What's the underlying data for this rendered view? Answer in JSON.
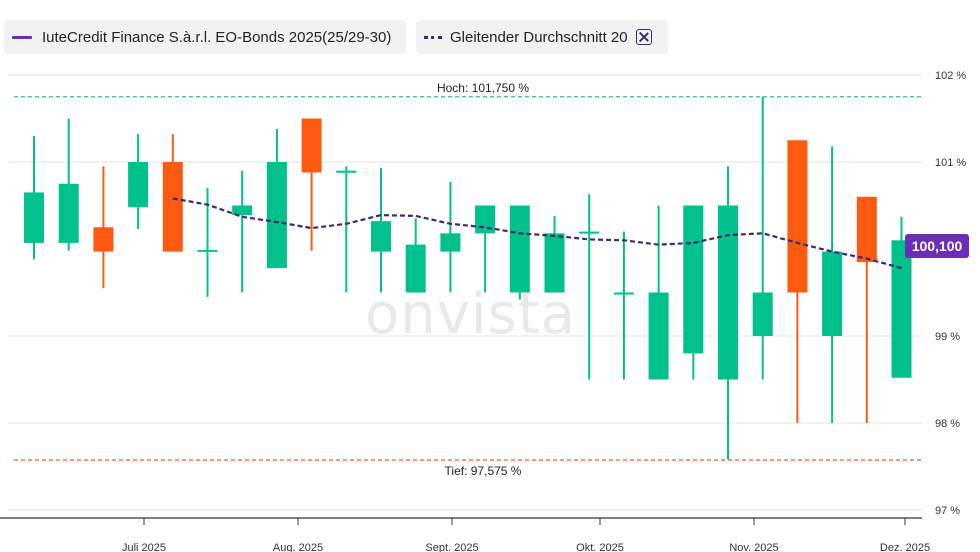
{
  "legend": {
    "bond_label": "IuteCredit Finance S.à.r.l. EO-Bonds 2025(25/29-30)",
    "ma_label": "Gleitender Durchschnitt 20",
    "close_icon": "close-icon"
  },
  "watermark": "onvista",
  "last_value_label": "100,100",
  "colors": {
    "up": "#00c08b",
    "down": "#ff5a12",
    "ma": "#3a2a6e",
    "badge": "#6b2fb7",
    "high_line": "#27c49a",
    "low_line": "#ff5a12",
    "grid": "#e6e6e6"
  },
  "chart_data": {
    "type": "candlestick",
    "ylim": [
      97.0,
      102.0
    ],
    "y_ticks": [
      {
        "value": 102,
        "label": "102 %"
      },
      {
        "value": 101,
        "label": "101 %"
      },
      {
        "value": 99,
        "label": "99 %"
      },
      {
        "value": 98,
        "label": "98 %"
      },
      {
        "value": 97,
        "label": "97 %"
      }
    ],
    "x_ticks": [
      "Juli 2025",
      "Aug. 2025",
      "Sept. 2025",
      "Okt. 2025",
      "Nov. 2025",
      "Dez. 2025"
    ],
    "high": {
      "value": 101.75,
      "label": "Hoch: 101,750 %"
    },
    "low": {
      "value": 97.575,
      "label": "Tief: 97,575 %"
    },
    "last": {
      "value": 100.1,
      "label": "100,100"
    },
    "candles": [
      {
        "open": 100.07,
        "close": 100.65,
        "high": 101.3,
        "low": 99.88
      },
      {
        "open": 100.07,
        "close": 100.75,
        "high": 101.5,
        "low": 99.98
      },
      {
        "open": 100.25,
        "close": 99.97,
        "high": 100.95,
        "low": 99.55
      },
      {
        "open": 100.48,
        "close": 101.0,
        "high": 101.32,
        "low": 100.23
      },
      {
        "open": 101.0,
        "close": 99.97,
        "high": 101.32,
        "low": 99.97
      },
      {
        "open": 99.99,
        "close": 99.99,
        "high": 100.7,
        "low": 99.45
      },
      {
        "open": 100.39,
        "close": 100.5,
        "high": 100.9,
        "low": 99.5
      },
      {
        "open": 99.78,
        "close": 101.0,
        "high": 101.38,
        "low": 99.78
      },
      {
        "open": 101.5,
        "close": 100.88,
        "high": 101.5,
        "low": 99.98
      },
      {
        "open": 100.9,
        "close": 100.9,
        "high": 100.95,
        "low": 99.5
      },
      {
        "open": 99.97,
        "close": 100.32,
        "high": 100.93,
        "low": 99.5
      },
      {
        "open": 99.5,
        "close": 100.05,
        "high": 100.35,
        "low": 99.5
      },
      {
        "open": 99.97,
        "close": 100.18,
        "high": 100.77,
        "low": 99.5
      },
      {
        "open": 100.18,
        "close": 100.5,
        "high": 100.5,
        "low": 99.5
      },
      {
        "open": 99.5,
        "close": 100.5,
        "high": 100.5,
        "low": 99.42
      },
      {
        "open": 99.5,
        "close": 100.18,
        "high": 100.38,
        "low": 99.5
      },
      {
        "open": 100.2,
        "close": 100.2,
        "high": 100.63,
        "low": 98.5
      },
      {
        "open": 99.5,
        "close": 99.5,
        "high": 100.2,
        "low": 98.5
      },
      {
        "open": 98.5,
        "close": 99.5,
        "high": 100.5,
        "low": 98.5
      },
      {
        "open": 98.8,
        "close": 100.5,
        "high": 100.5,
        "low": 98.5
      },
      {
        "open": 98.5,
        "close": 100.5,
        "high": 100.95,
        "low": 97.58
      },
      {
        "open": 99.0,
        "close": 99.5,
        "high": 101.75,
        "low": 98.5
      },
      {
        "open": 101.25,
        "close": 99.5,
        "high": 101.25,
        "low": 98.0
      },
      {
        "open": 99.0,
        "close": 99.97,
        "high": 101.18,
        "low": 98.0
      },
      {
        "open": 100.6,
        "close": 99.85,
        "high": 100.6,
        "low": 98.0
      },
      {
        "open": 98.52,
        "close": 100.1,
        "high": 100.37,
        "low": 98.52
      }
    ],
    "moving_average": [
      {
        "index": 4,
        "value": 100.58
      },
      {
        "index": 5,
        "value": 100.51
      },
      {
        "index": 6,
        "value": 100.37
      },
      {
        "index": 7,
        "value": 100.31
      },
      {
        "index": 8,
        "value": 100.24
      },
      {
        "index": 9,
        "value": 100.29
      },
      {
        "index": 10,
        "value": 100.39
      },
      {
        "index": 11,
        "value": 100.38
      },
      {
        "index": 12,
        "value": 100.29
      },
      {
        "index": 13,
        "value": 100.25
      },
      {
        "index": 14,
        "value": 100.18
      },
      {
        "index": 15,
        "value": 100.15
      },
      {
        "index": 16,
        "value": 100.11
      },
      {
        "index": 17,
        "value": 100.1
      },
      {
        "index": 18,
        "value": 100.05
      },
      {
        "index": 19,
        "value": 100.07
      },
      {
        "index": 20,
        "value": 100.16
      },
      {
        "index": 21,
        "value": 100.18
      },
      {
        "index": 22,
        "value": 100.07
      },
      {
        "index": 23,
        "value": 99.97
      },
      {
        "index": 24,
        "value": 99.89
      },
      {
        "index": 25,
        "value": 99.78
      }
    ]
  }
}
